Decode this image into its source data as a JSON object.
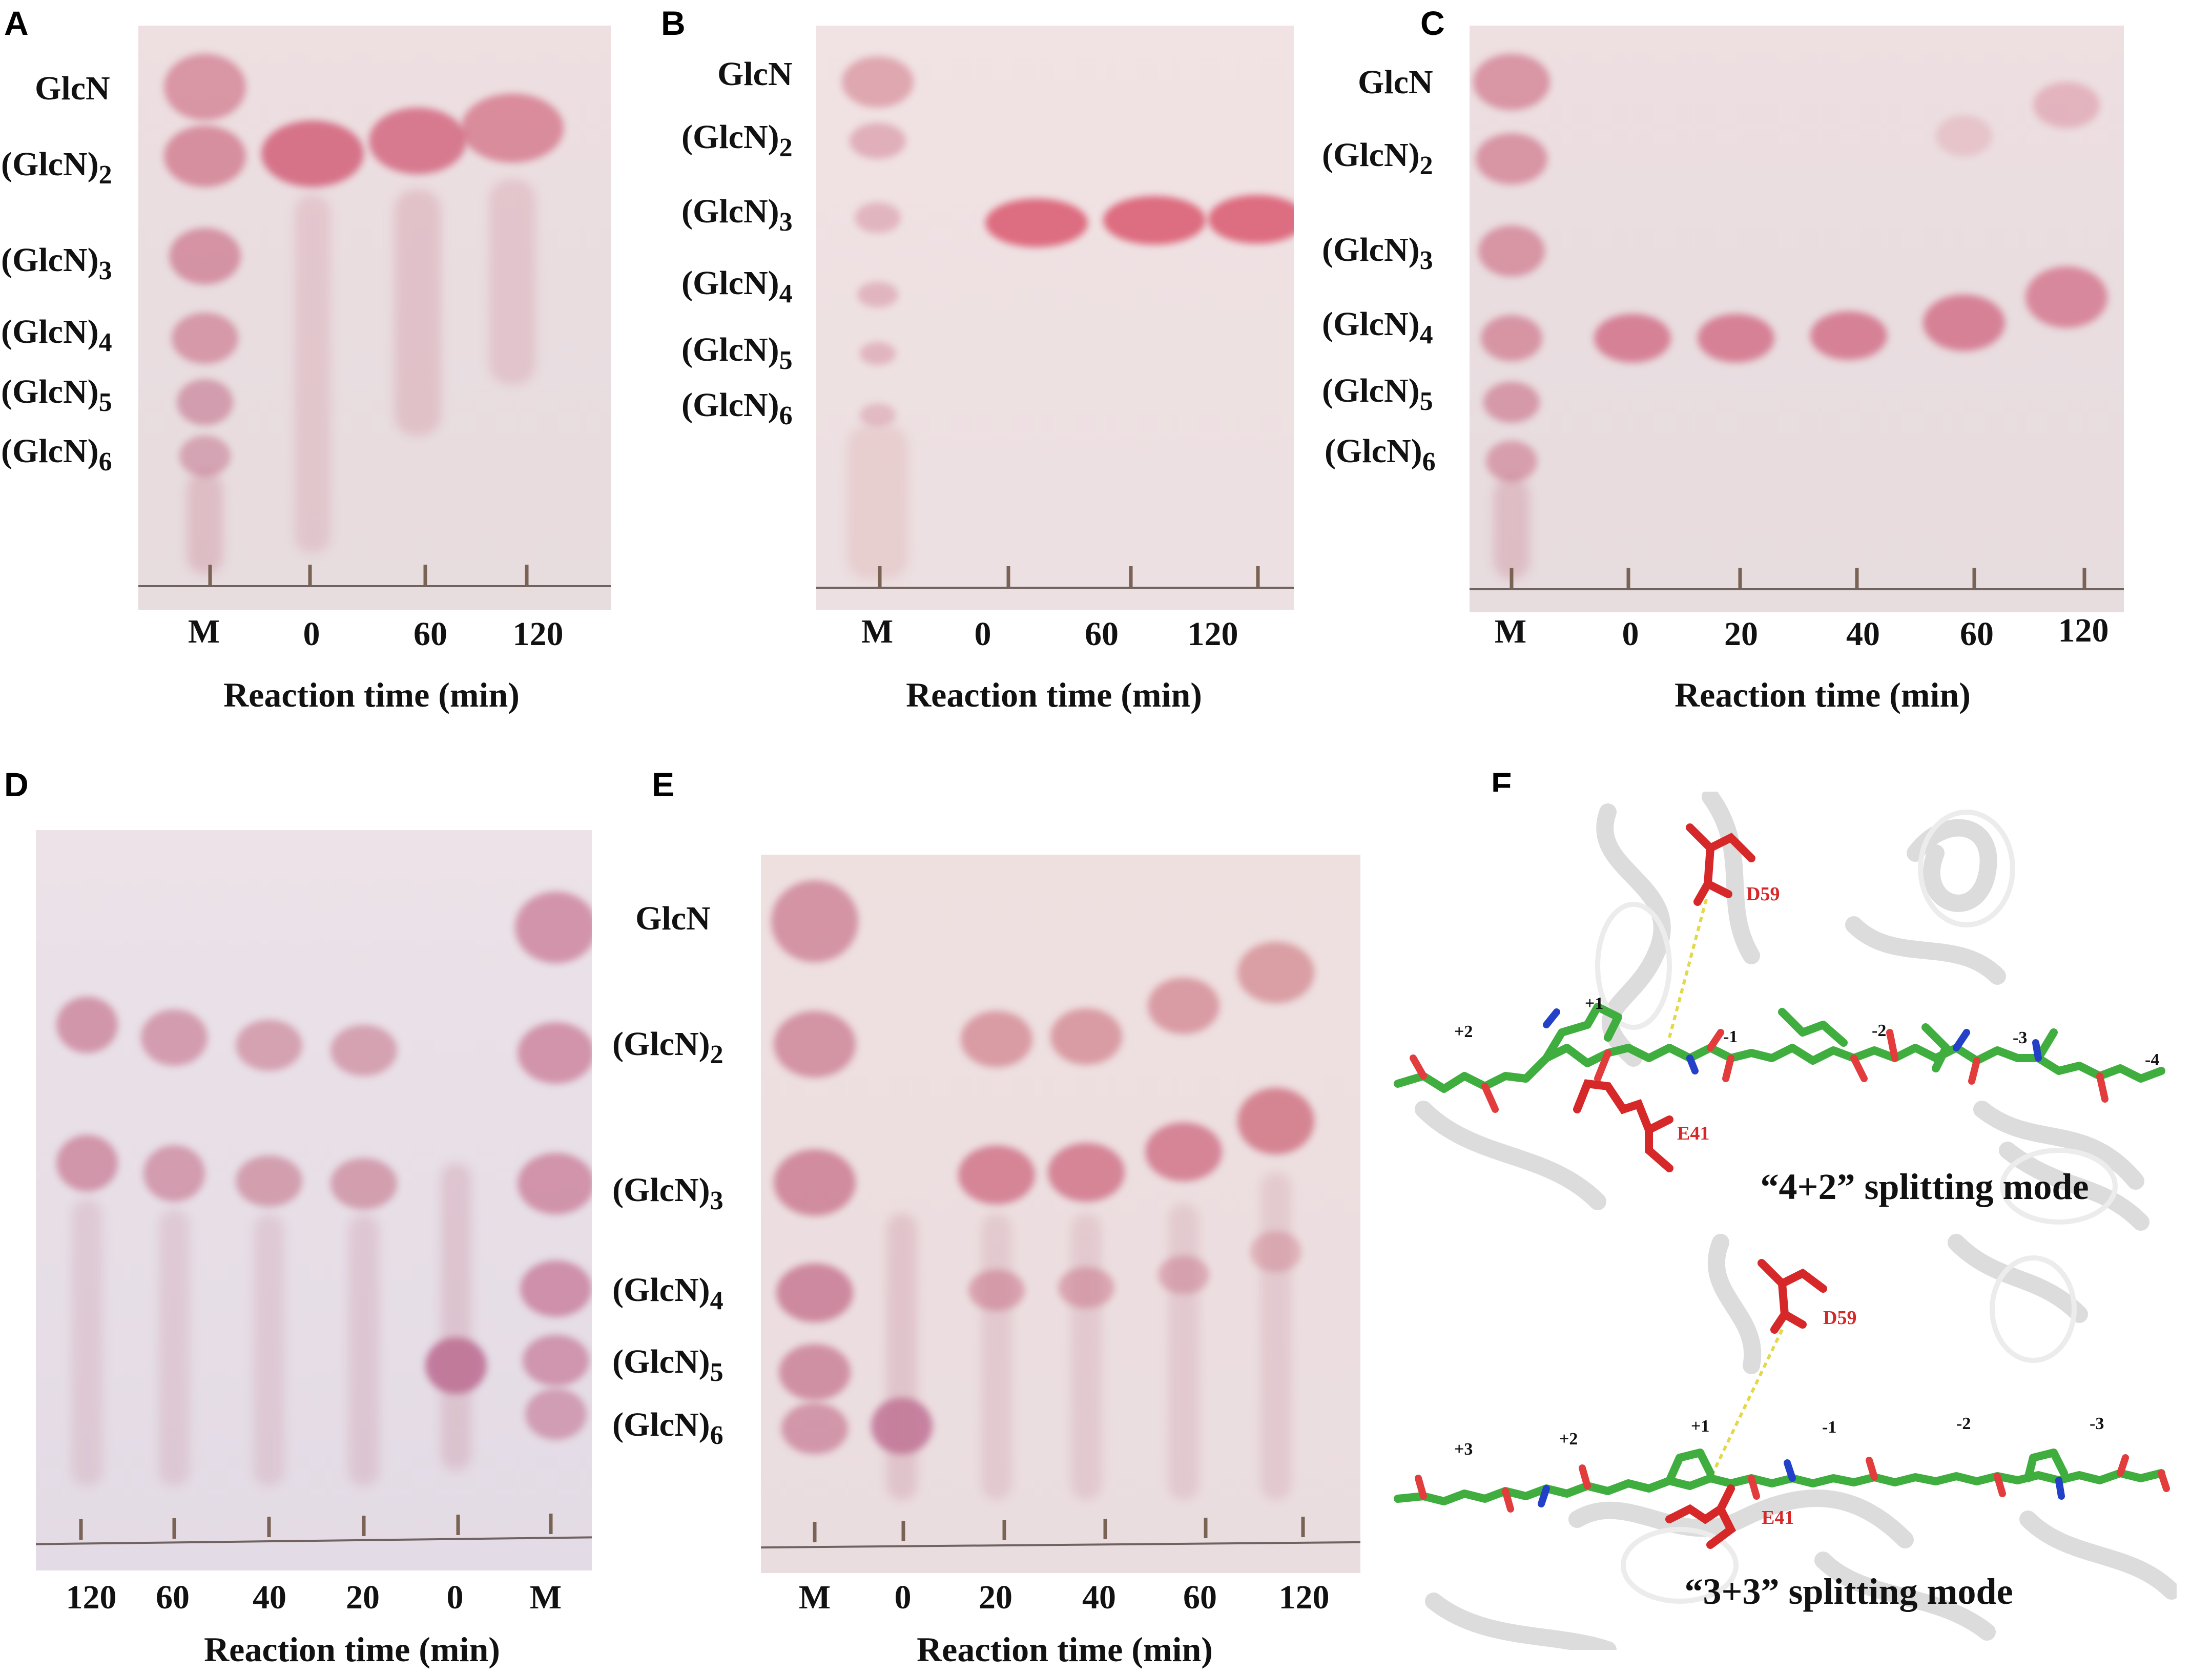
{
  "panels": {
    "A": {
      "letter": "A",
      "lanes": [
        "M",
        "0",
        "60",
        "120"
      ],
      "bands": [
        {
          "base": "GlcN",
          "sub": ""
        },
        {
          "base": "(GlcN)",
          "sub": "2"
        },
        {
          "base": "(GlcN)",
          "sub": "3"
        },
        {
          "base": "(GlcN)",
          "sub": "4"
        },
        {
          "base": "(GlcN)",
          "sub": "5"
        },
        {
          "base": "(GlcN)",
          "sub": "6"
        }
      ],
      "axis_title": "Reaction time (min)"
    },
    "B": {
      "letter": "B",
      "lanes": [
        "M",
        "0",
        "60",
        "120"
      ],
      "bands": [
        {
          "base": "GlcN",
          "sub": ""
        },
        {
          "base": "(GlcN)",
          "sub": "2"
        },
        {
          "base": "(GlcN)",
          "sub": "3"
        },
        {
          "base": "(GlcN)",
          "sub": "4"
        },
        {
          "base": "(GlcN)",
          "sub": "5"
        },
        {
          "base": "(GlcN)",
          "sub": "6"
        }
      ],
      "axis_title": "Reaction time (min)"
    },
    "C": {
      "letter": "C",
      "lanes": [
        "M",
        "0",
        "20",
        "40",
        "60",
        "120"
      ],
      "bands": [
        {
          "base": "GlcN",
          "sub": ""
        },
        {
          "base": "(GlcN)",
          "sub": "2"
        },
        {
          "base": "(GlcN)",
          "sub": "3"
        },
        {
          "base": "(GlcN)",
          "sub": "4"
        },
        {
          "base": "(GlcN)",
          "sub": "5"
        },
        {
          "base": "(GlcN)",
          "sub": "6"
        }
      ],
      "axis_title": "Reaction time (min)"
    },
    "D": {
      "letter": "D",
      "lanes": [
        "120",
        "60",
        "40",
        "20",
        "0",
        "M"
      ],
      "axis_title": "Reaction time (min)"
    },
    "E": {
      "letter": "E",
      "lanes": [
        "M",
        "0",
        "20",
        "40",
        "60",
        "120"
      ],
      "bands": [
        {
          "base": "GlcN",
          "sub": ""
        },
        {
          "base": "(GlcN)",
          "sub": "2"
        },
        {
          "base": "(GlcN)",
          "sub": "3"
        },
        {
          "base": "(GlcN)",
          "sub": "4"
        },
        {
          "base": "(GlcN)",
          "sub": "5"
        },
        {
          "base": "(GlcN)",
          "sub": "6"
        }
      ],
      "axis_title": "Reaction time (min)"
    },
    "F": {
      "letter": "F",
      "top": {
        "residues": [
          "D59",
          "E41"
        ],
        "subsites": [
          "+2",
          "+1",
          "-1",
          "-2",
          "-3",
          "-4"
        ],
        "mode": "“4+2” splitting mode"
      },
      "bottom": {
        "residues": [
          "D59",
          "E41"
        ],
        "subsites": [
          "+3",
          "+2",
          "+1",
          "-1",
          "-2",
          "-3"
        ],
        "mode": "“3+3” splitting mode"
      }
    }
  },
  "colors": {
    "spot": "#c25a72",
    "residue": "#d62828",
    "sugar_carbon": "#3fae3f",
    "oxygen": "#e23c3c",
    "nitrogen": "#2340c8"
  }
}
